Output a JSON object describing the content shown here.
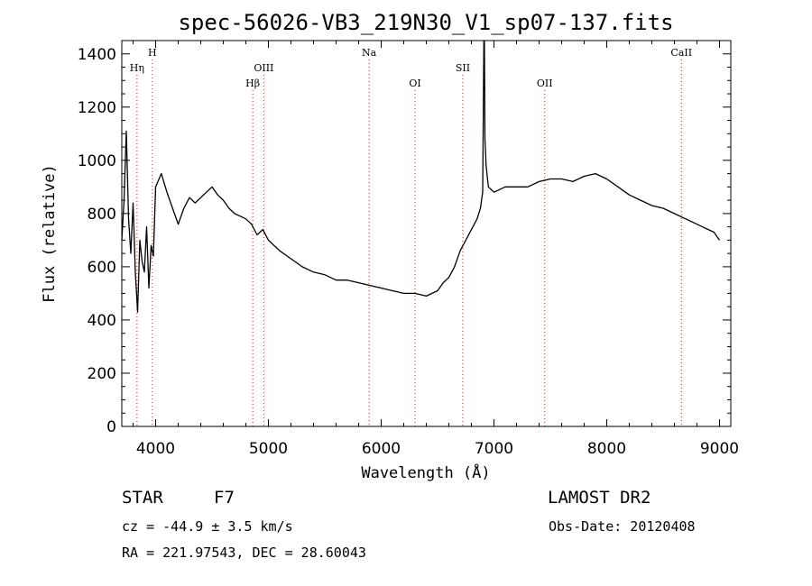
{
  "chart_data": {
    "type": "line",
    "title": "spec-56026-VB3_219N30_V1_sp07-137.fits",
    "xlabel": "Wavelength (Å)",
    "ylabel": "Flux (relative)",
    "xlim": [
      3700,
      9100
    ],
    "ylim": [
      0,
      1450
    ],
    "x_ticks": [
      4000,
      5000,
      6000,
      7000,
      8000,
      9000
    ],
    "y_ticks": [
      0,
      200,
      400,
      600,
      800,
      1000,
      1200,
      1400
    ],
    "grid": false,
    "series": [
      {
        "x": [
          3700,
          3720,
          3740,
          3760,
          3780,
          3800,
          3820,
          3840,
          3860,
          3880,
          3900,
          3920,
          3940,
          3960,
          3980,
          4000,
          4050,
          4100,
          4150,
          4200,
          4250,
          4300,
          4350,
          4400,
          4450,
          4500,
          4550,
          4600,
          4650,
          4700,
          4750,
          4800,
          4850,
          4900,
          4950,
          5000,
          5100,
          5200,
          5300,
          5400,
          5500,
          5600,
          5700,
          5800,
          5900,
          6000,
          6100,
          6200,
          6300,
          6400,
          6500,
          6550,
          6600,
          6650,
          6700,
          6750,
          6800,
          6850,
          6880,
          6900,
          6910,
          6915,
          6920,
          6930,
          6950,
          7000,
          7100,
          7200,
          7300,
          7400,
          7500,
          7600,
          7700,
          7800,
          7900,
          8000,
          8100,
          8200,
          8300,
          8400,
          8500,
          8600,
          8700,
          8800,
          8900,
          8950,
          9000
        ],
        "y": [
          700,
          850,
          1110,
          780,
          650,
          840,
          580,
          430,
          700,
          620,
          580,
          750,
          520,
          680,
          640,
          900,
          950,
          880,
          820,
          760,
          820,
          860,
          840,
          860,
          880,
          900,
          870,
          850,
          820,
          800,
          790,
          780,
          760,
          720,
          740,
          700,
          660,
          630,
          600,
          580,
          570,
          550,
          550,
          540,
          530,
          520,
          510,
          500,
          500,
          490,
          510,
          540,
          560,
          600,
          660,
          700,
          740,
          780,
          820,
          880,
          1450,
          1450,
          1080,
          980,
          900,
          880,
          900,
          900,
          900,
          920,
          930,
          930,
          920,
          940,
          950,
          930,
          900,
          870,
          850,
          830,
          820,
          800,
          780,
          760,
          740,
          730,
          700
        ]
      }
    ],
    "line_markers": [
      {
        "label": "Hη",
        "x": 3835,
        "row": 2
      },
      {
        "label": "H",
        "x": 3970,
        "row": 1
      },
      {
        "label": "Hβ",
        "x": 4861,
        "row": 3
      },
      {
        "label": "OIII",
        "x": 4959,
        "row": 2
      },
      {
        "label": "Na",
        "x": 5893,
        "row": 1
      },
      {
        "label": "OI",
        "x": 6300,
        "row": 3
      },
      {
        "label": "SII",
        "x": 6724,
        "row": 2
      },
      {
        "label": "OII",
        "x": 7450,
        "row": 3
      },
      {
        "label": "CaII",
        "x": 8662,
        "row": 1
      }
    ],
    "colors": {
      "spectrum": "#000000",
      "marker_line": "#ff0000",
      "axes": "#000000"
    }
  },
  "info": {
    "object_class": "STAR",
    "subclass": "F7",
    "survey": "LAMOST DR2",
    "redshift": "cz = -44.9 ± 3.5 km/s",
    "obs_date": "Obs-Date: 20120408",
    "coords": "RA = 221.97543, DEC =  28.60043"
  }
}
